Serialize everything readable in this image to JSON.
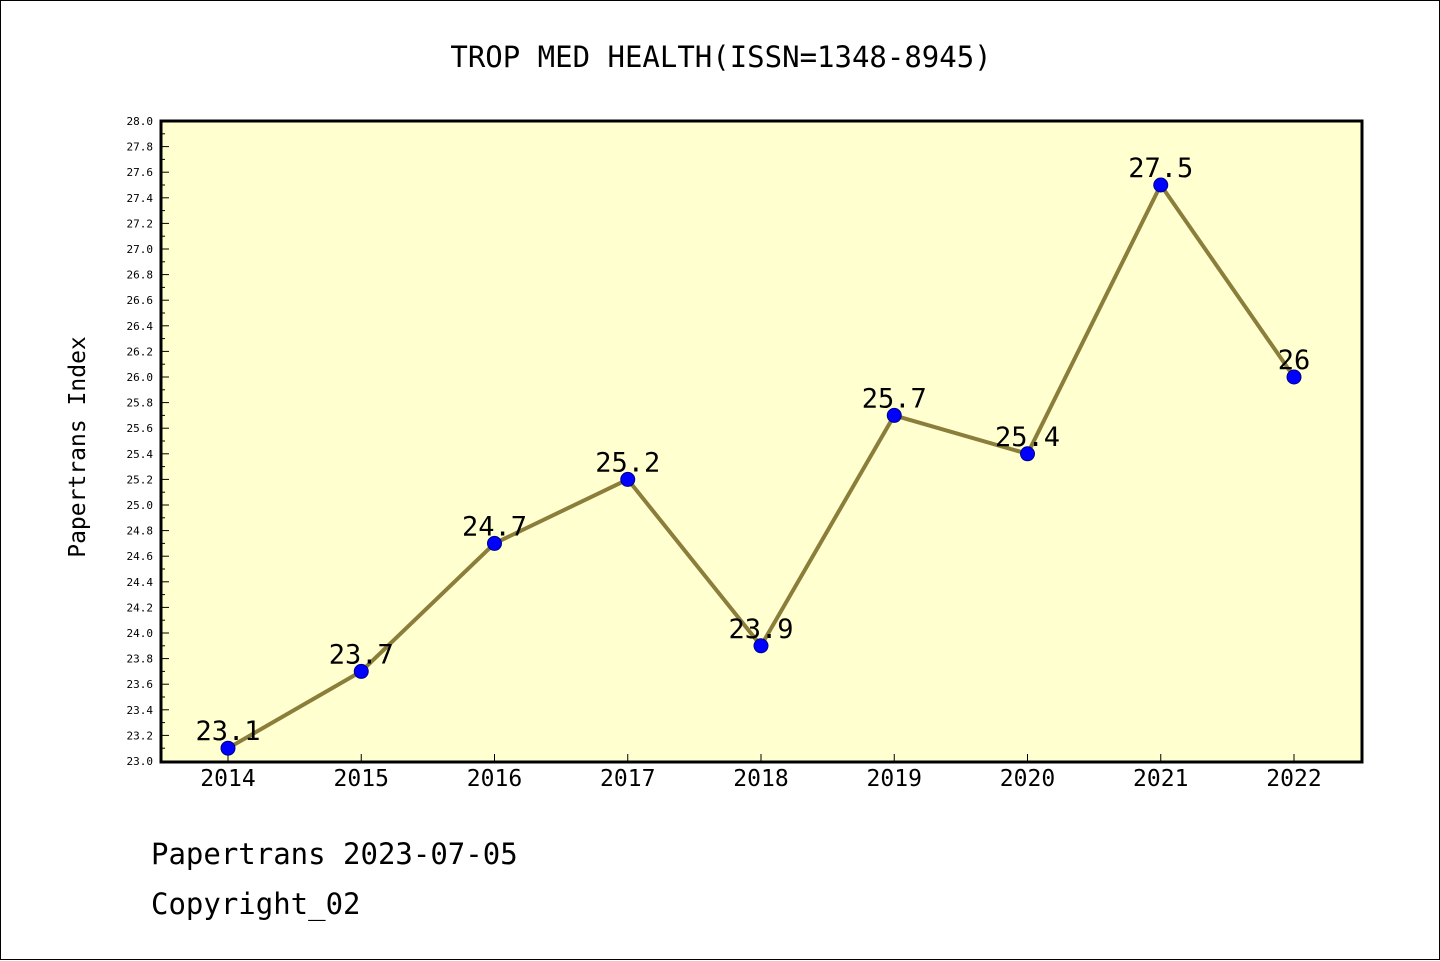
{
  "chart_data": {
    "type": "line",
    "title": "TROP MED HEALTH(ISSN=1348-8945)",
    "xlabel": "",
    "ylabel": "Papertrans Index",
    "categories": [
      "2014",
      "2015",
      "2016",
      "2017",
      "2018",
      "2019",
      "2020",
      "2021",
      "2022"
    ],
    "series": [
      {
        "values": [
          23.1,
          23.7,
          24.7,
          25.2,
          23.9,
          25.7,
          25.4,
          27.5,
          26
        ],
        "labels": [
          "23.1",
          "23.7",
          "24.7",
          "25.2",
          "23.9",
          "25.7",
          "25.4",
          "27.5",
          "26"
        ]
      }
    ],
    "ylim": [
      23.0,
      28.0
    ],
    "yticks": [
      "23.0",
      "23.2",
      "23.4",
      "23.6",
      "23.8",
      "24.0",
      "24.2",
      "24.4",
      "24.6",
      "24.8",
      "25.0",
      "25.2",
      "25.4",
      "25.6",
      "25.8",
      "26.0",
      "26.2",
      "26.4",
      "26.6",
      "26.8",
      "27.0",
      "27.2",
      "27.4",
      "27.6",
      "27.8",
      "28.0"
    ],
    "grid": false,
    "legend": "none",
    "colors": {
      "plot_background": "#ffffd0",
      "line": "#8b7d3a",
      "marker": "#0000ff",
      "axis": "#000000"
    }
  },
  "footer": {
    "line1": "Papertrans 2023-07-05",
    "line2": "Copyright_02"
  }
}
